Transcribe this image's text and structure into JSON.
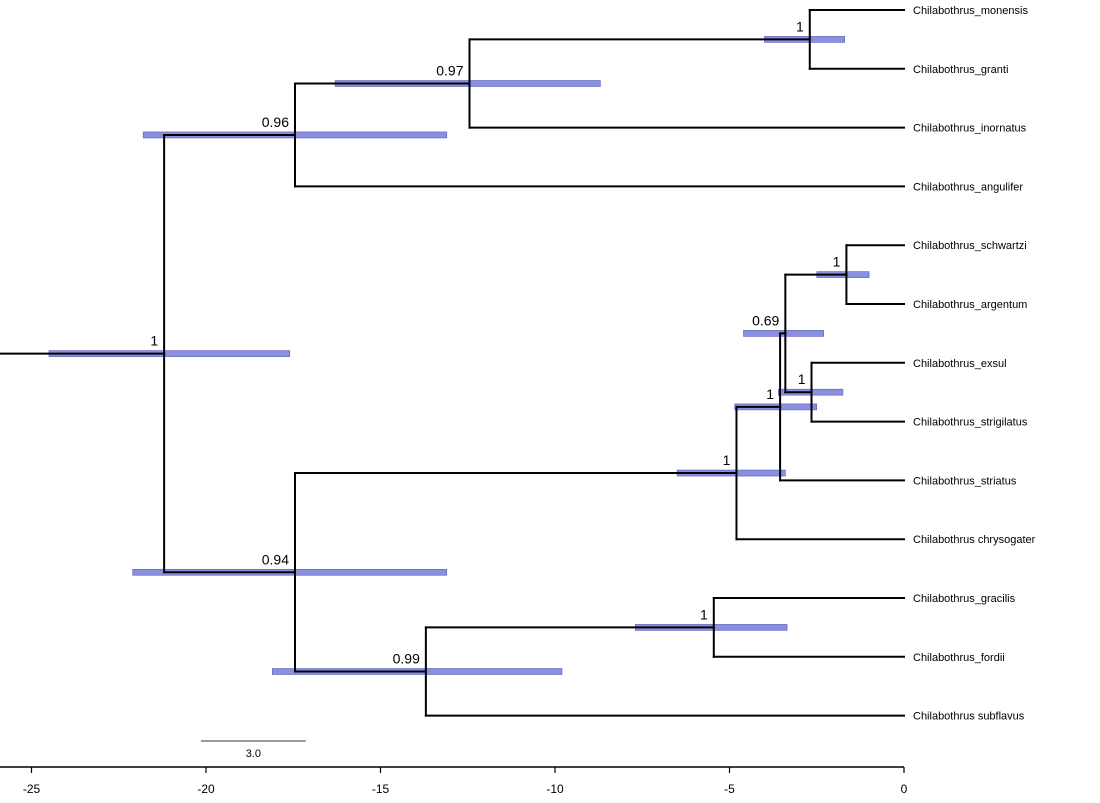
{
  "tree": {
    "tips": [
      "Chilabothrus_monensis",
      "Chilabothrus_granti",
      "Chilabothrus_inornatus",
      "Chilabothrus_angulifer",
      "Chilabothrus_schwartzi",
      "Chilabothrus_argentum",
      "Chilabothrus_exsul",
      "Chilabothrus_strigilatus",
      "Chilabothrus_striatus",
      "Chilabothrus  chrysogater",
      "Chilabothrus_gracilis",
      "Chilabothrus_fordii",
      "Chilabothrus  subflavus"
    ],
    "nodes": [
      {
        "id": "root",
        "age": -21.2,
        "ci": [
          -24.5,
          -17.6
        ],
        "support": "1",
        "children": [
          "n_a",
          "n_b"
        ]
      },
      {
        "id": "n_a",
        "age": -17.45,
        "ci": [
          -21.8,
          -13.1
        ],
        "support": "0.96",
        "children": [
          "n_a1",
          "t3"
        ]
      },
      {
        "id": "n_a1",
        "age": -12.45,
        "ci": [
          -16.3,
          -8.7
        ],
        "support": "0.97",
        "children": [
          "n_a2",
          "t2"
        ]
      },
      {
        "id": "n_a2",
        "age": -2.7,
        "ci": [
          -4.0,
          -1.7
        ],
        "support": "1",
        "children": [
          "t0",
          "t1"
        ]
      },
      {
        "id": "n_b",
        "age": -17.45,
        "ci": [
          -22.1,
          -13.1
        ],
        "support": "0.94",
        "children": [
          "n_c",
          "n_d"
        ]
      },
      {
        "id": "n_c",
        "age": -4.8,
        "ci": [
          -6.5,
          -3.4
        ],
        "support": "1",
        "children": [
          "n_c1",
          "t9"
        ]
      },
      {
        "id": "n_c1",
        "age": -3.55,
        "ci": [
          -4.85,
          -2.5
        ],
        "support": "1",
        "children": [
          "n_c2",
          "t8"
        ]
      },
      {
        "id": "n_c2",
        "age": -3.4,
        "ci": [
          -4.6,
          -2.3
        ],
        "support": "0.69",
        "children": [
          "n_c3",
          "n_c4"
        ]
      },
      {
        "id": "n_c3",
        "age": -1.65,
        "ci": [
          -2.5,
          -1.0
        ],
        "support": "1",
        "children": [
          "t4",
          "t5"
        ]
      },
      {
        "id": "n_c4",
        "age": -2.65,
        "ci": [
          -3.6,
          -1.75
        ],
        "support": "1",
        "children": [
          "t6",
          "t7"
        ]
      },
      {
        "id": "n_d",
        "age": -13.7,
        "ci": [
          -18.1,
          -9.8
        ],
        "support": "0.99",
        "children": [
          "n_d1",
          "t12"
        ]
      },
      {
        "id": "n_d1",
        "age": -5.45,
        "ci": [
          -7.7,
          -3.35
        ],
        "support": "1",
        "children": [
          "t10",
          "t11"
        ]
      }
    ]
  },
  "axis": {
    "min": -25,
    "max": 0,
    "ticks": [
      "-25",
      "-20",
      "-15",
      "-10",
      "-5",
      "0"
    ]
  },
  "scale_bar": {
    "length": 3.0,
    "label": "3.0"
  },
  "colors": {
    "hpd_bar": "#8a8fe0",
    "branch": "#000000"
  }
}
